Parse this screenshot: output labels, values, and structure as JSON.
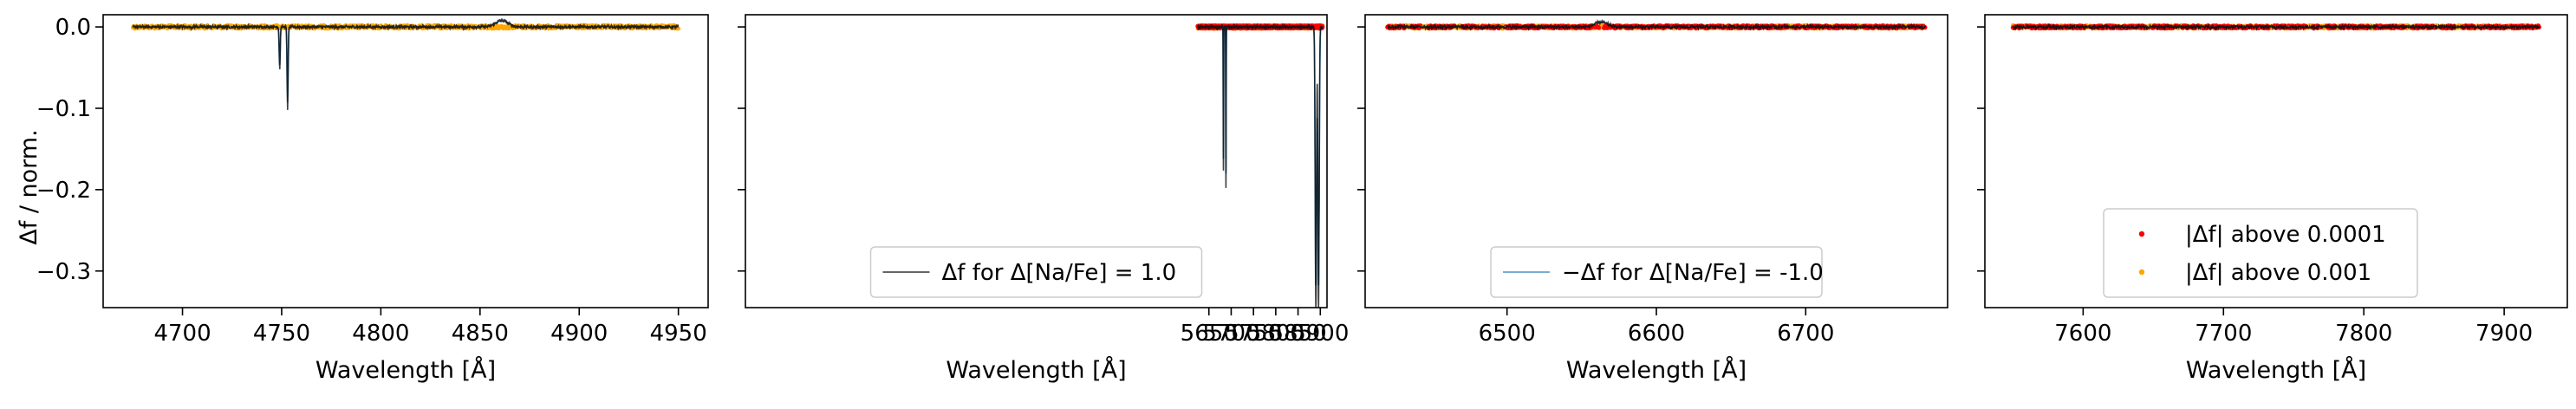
{
  "chart_data": {
    "type": "line",
    "shared_y": true,
    "ylabel": "Δf / norm.",
    "ylim": [
      -0.345,
      0.015
    ],
    "yticks": [
      0.0,
      -0.1,
      -0.2,
      -0.3
    ],
    "ytick_labels": [
      "0.0",
      "−0.1",
      "−0.2",
      "−0.3"
    ],
    "legend_entries": {
      "line_positive": "Δf for Δ[Na/Fe] = 1.0",
      "line_negative": "−Δf for Δ[Na/Fe] = -1.0",
      "dots_red": "|Δf| above 0.0001",
      "dots_orange": "|Δf| above 0.001"
    },
    "colors": {
      "line_positive": "#000000",
      "line_negative": "#1f77b4",
      "dots_red": "#ff0000",
      "dots_orange": "#ffa500"
    },
    "panels": [
      {
        "xlabel": "Wavelength [Å]",
        "xlim": [
          4660,
          4965
        ],
        "xticks": [
          4700,
          4750,
          4800,
          4850,
          4900,
          4950
        ],
        "range": [
          4675,
          4950
        ],
        "legend": [],
        "features": [
          {
            "x": 4749,
            "depth": -0.052,
            "width": 0.25
          },
          {
            "x": 4753,
            "depth": -0.101,
            "width": 0.25
          },
          {
            "x": 4861,
            "depth": 0.008,
            "width": 3.0
          }
        ],
        "points": {
          "red": false,
          "orange": true
        }
      },
      {
        "xlabel": "Wavelength [Å]",
        "xlim": [
          4610,
          5915
        ],
        "xticks": [
          5650,
          5700,
          5750,
          5800,
          5850,
          5900
        ],
        "range": [
          5625,
          5905
        ],
        "legend": [
          "line_positive"
        ],
        "features": [
          {
            "x": 5682.6,
            "depth": -0.176,
            "width": 0.45
          },
          {
            "x": 5688.2,
            "depth": -0.196,
            "width": 0.45
          },
          {
            "x": 5890.0,
            "depth": -0.345,
            "width": 1.4
          },
          {
            "x": 5896.0,
            "depth": -0.345,
            "width": 1.4
          }
        ],
        "points": {
          "red": true,
          "orange": true
        }
      },
      {
        "xlabel": "Wavelength [Å]",
        "xlim": [
          6405,
          6795
        ],
        "xticks": [
          6500,
          6600,
          6700
        ],
        "range": [
          6420,
          6780
        ],
        "legend": [
          "line_negative"
        ],
        "features": [
          {
            "x": 6563,
            "depth": 0.006,
            "width": 4.0
          }
        ],
        "points": {
          "red": true,
          "orange": true
        }
      },
      {
        "xlabel": "Wavelength [Å]",
        "xlim": [
          7530,
          7945
        ],
        "xticks": [
          7600,
          7700,
          7800,
          7900
        ],
        "range": [
          7550,
          7925
        ],
        "legend": [
          "dots_red",
          "dots_orange"
        ],
        "features": [],
        "points": {
          "red": true,
          "orange": true
        }
      }
    ]
  }
}
